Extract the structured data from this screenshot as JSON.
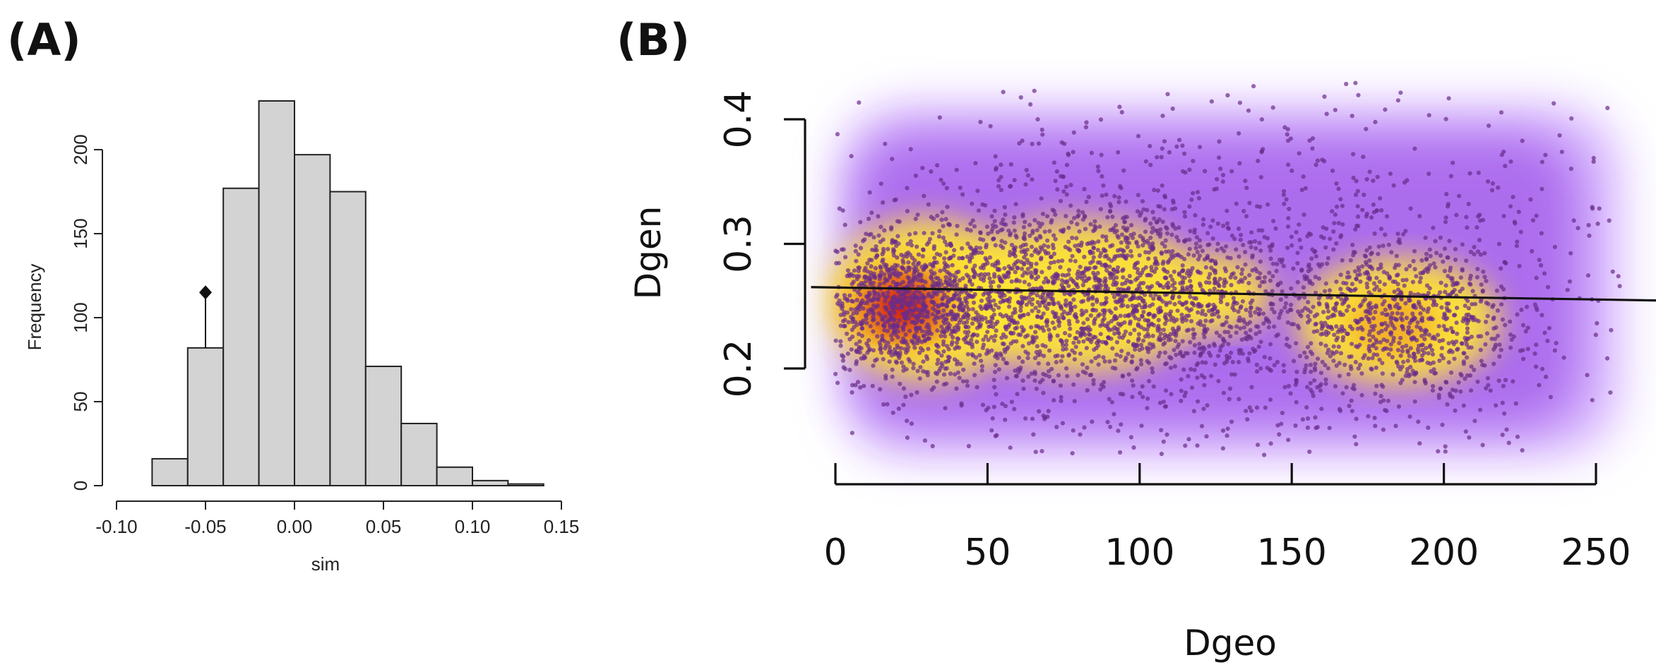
{
  "panels": {
    "a_label": "(A)",
    "b_label": "(B)"
  },
  "chart_data": [
    {
      "type": "bar",
      "panel": "(A)",
      "xlabel": "sim",
      "ylabel": "Frequency",
      "bin_edges": [
        -0.08,
        -0.06,
        -0.04,
        -0.02,
        0.0,
        0.02,
        0.04,
        0.06,
        0.08,
        0.1,
        0.12,
        0.14
      ],
      "values": [
        16,
        82,
        177,
        229,
        197,
        175,
        71,
        37,
        11,
        3,
        1
      ],
      "xlim": [
        -0.1,
        0.15
      ],
      "ylim": [
        0,
        229
      ],
      "x_ticks": [
        "-0.10",
        "-0.05",
        "0.00",
        "0.05",
        "0.10",
        "0.15"
      ],
      "x_tick_values": [
        -0.1,
        -0.05,
        0.0,
        0.05,
        0.1,
        0.15
      ],
      "y_ticks": [
        "0",
        "50",
        "100",
        "150",
        "200"
      ],
      "y_tick_values": [
        0,
        50,
        100,
        150,
        200
      ],
      "observed_marker": {
        "x": -0.05,
        "y": 115
      },
      "grid": false,
      "bar_color": "#d3d3d3"
    },
    {
      "type": "scatter",
      "panel": "(B)",
      "xlabel": "Dgeo",
      "ylabel": "Dgen",
      "xlim": [
        0,
        260
      ],
      "ylim": [
        0.12,
        0.42
      ],
      "x_ticks": [
        "0",
        "50",
        "100",
        "150",
        "200",
        "250"
      ],
      "x_tick_values": [
        0,
        50,
        100,
        150,
        200,
        250
      ],
      "y_ticks": [
        "0.2",
        "0.3",
        "0.4"
      ],
      "y_tick_values": [
        0.2,
        0.3,
        0.4
      ],
      "regression_line": {
        "intercept": 0.265,
        "slope": -3.85e-05
      },
      "density_clusters": [
        {
          "x": 22,
          "y": 0.25,
          "sx": 16,
          "sy": 0.03,
          "n": 900
        },
        {
          "x": 65,
          "y": 0.255,
          "sx": 26,
          "sy": 0.04,
          "n": 900
        },
        {
          "x": 105,
          "y": 0.258,
          "sx": 22,
          "sy": 0.035,
          "n": 700
        },
        {
          "x": 185,
          "y": 0.235,
          "sx": 20,
          "sy": 0.035,
          "n": 700
        },
        {
          "x": 130,
          "y": 0.27,
          "sx": 70,
          "sy": 0.075,
          "n": 1200
        }
      ],
      "grid": false,
      "point_color": "#6a2c8a",
      "density_colors": [
        "#ffffff",
        "#b77bff",
        "#8a33e0",
        "#f2e86a",
        "#ffe633",
        "#f0a020",
        "#d01010"
      ]
    }
  ]
}
